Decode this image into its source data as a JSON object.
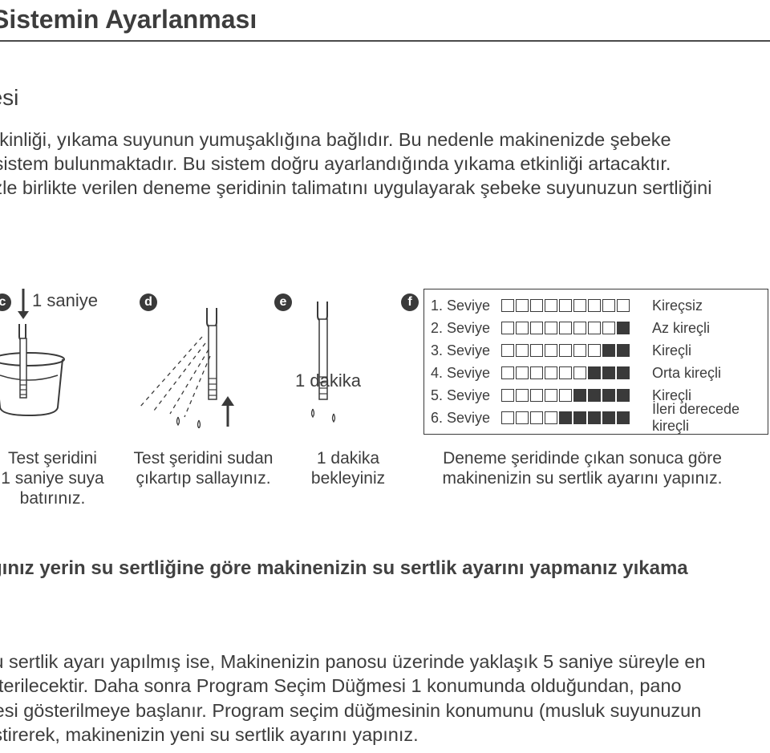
{
  "title": "Sistemin Ayarlanması",
  "subhead": "nesi",
  "para1": "a etkinliği, yıkama suyunun yumuşaklığına bağlıdır. Bu nedenle makinenizde şebeke\nbir sistem bulunmaktadır. Bu sistem doğru ayarlandığında yıkama etkinliği artacaktır.\nenizle birlikte verilen deneme şeridinin talimatını uygulayarak şebeke suyunuzun sertliğini",
  "steps": {
    "c": {
      "annot": "1 saniye",
      "caption": "Test şeridini\n1 saniye suya\nbatırınız."
    },
    "d": {
      "caption": "Test şeridini sudan\nçıkartıp sallayınız."
    },
    "e": {
      "annot": "1 dakika",
      "caption": "1 dakika\nbekleyiniz"
    },
    "f": {
      "caption": "Deneme şeridinde çıkan sonuca göre\nmakinenizin su sertlik ayarını yapınız."
    }
  },
  "legend": [
    {
      "level": "1. Seviye",
      "filled": 0,
      "label": "Kireçsiz"
    },
    {
      "level": "2. Seviye",
      "filled": 1,
      "label": "Az kireçli"
    },
    {
      "level": "3. Seviye",
      "filled": 2,
      "label": "Kireçli"
    },
    {
      "level": "4. Seviye",
      "filled": 3,
      "label": "Orta kireçli"
    },
    {
      "level": "5. Seviye",
      "filled": 4,
      "label": "Kireçli"
    },
    {
      "level": "6. Seviye",
      "filled": 5,
      "label": "İleri derecede kireçli"
    }
  ],
  "legend_total_boxes": 9,
  "para2": "ıdığınız yerin su sertliğine göre makinenizin su sertlik ayarını yapmanız  yıkama",
  "para3": "e su sertlik ayarı yapılmış ise, Makinenizin panosu üzerinde yaklaşık 5 saniye süreyle en\ngösterilecektir. Daha sonra Program Seçim Düğmesi 1 konumunda olduğundan, pano\nemesi gösterilmeye başlanır. Program seçim düğmesinin konumunu (musluk suyunuzun\neğiştirerek, makinenizin yeni su sertlik ayarını yapınız.",
  "colors": {
    "text": "#3d3d3d",
    "rule": "#4a4a4a",
    "ink": "#3a3a3a",
    "bg": "#ffffff"
  }
}
